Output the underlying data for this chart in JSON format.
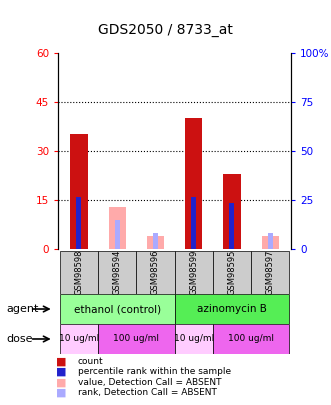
{
  "title": "GDS2050 / 8733_at",
  "samples": [
    "GSM98598",
    "GSM98594",
    "GSM98596",
    "GSM98599",
    "GSM98595",
    "GSM98597"
  ],
  "count_values": [
    35,
    0,
    0,
    40,
    23,
    0
  ],
  "percentile_values": [
    16,
    0,
    0,
    16,
    14,
    0
  ],
  "absent_count_values": [
    0,
    13,
    4,
    0,
    0,
    4
  ],
  "absent_percentile_values": [
    0,
    9,
    5,
    0,
    0,
    5
  ],
  "ylim_left": [
    0,
    60
  ],
  "ylim_right": [
    0,
    100
  ],
  "yticks_left": [
    0,
    15,
    30,
    45,
    60
  ],
  "ytick_labels_left": [
    "0",
    "15",
    "30",
    "45",
    "60"
  ],
  "ytick_labels_right": [
    "0",
    "25",
    "50",
    "75",
    "100%"
  ],
  "count_color": "#cc1111",
  "percentile_color": "#2222cc",
  "absent_count_color": "#ffaaaa",
  "absent_percentile_color": "#aaaaff",
  "sample_bg_color": "#cccccc",
  "agent_configs": [
    {
      "label": "ethanol (control)",
      "start": 0,
      "end": 3,
      "color": "#99ff99"
    },
    {
      "label": "azinomycin B",
      "start": 3,
      "end": 6,
      "color": "#55ee55"
    }
  ],
  "dose_configs": [
    {
      "label": "10 ug/ml",
      "start": 0,
      "end": 1,
      "color": "#ffccff"
    },
    {
      "label": "100 ug/ml",
      "start": 1,
      "end": 3,
      "color": "#ee66ee"
    },
    {
      "label": "10 ug/ml",
      "start": 3,
      "end": 4,
      "color": "#ffccff"
    },
    {
      "label": "100 ug/ml",
      "start": 4,
      "end": 6,
      "color": "#ee66ee"
    }
  ],
  "legend_items": [
    {
      "label": "count",
      "color": "#cc1111"
    },
    {
      "label": "percentile rank within the sample",
      "color": "#2222cc"
    },
    {
      "label": "value, Detection Call = ABSENT",
      "color": "#ffaaaa"
    },
    {
      "label": "rank, Detection Call = ABSENT",
      "color": "#aaaaff"
    }
  ]
}
